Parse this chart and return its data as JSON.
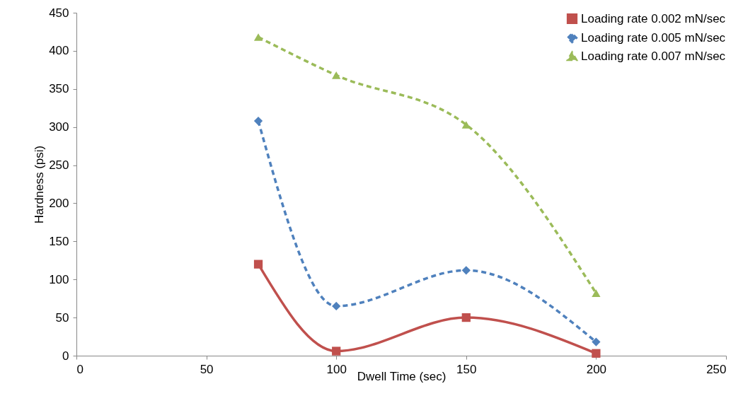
{
  "chart_data": {
    "type": "line",
    "xlabel": "Dwell Time (sec)",
    "ylabel": "Hardness (psi)",
    "x": [
      70,
      100,
      150,
      200
    ],
    "series": [
      {
        "name": "Loading rate 0.002 mN/sec",
        "color": "#c0504d",
        "marker": "square",
        "line_style": "solid",
        "values": [
          120,
          6,
          50,
          3
        ]
      },
      {
        "name": "Loading rate 0.005 mN/sec",
        "color": "#4f81bd",
        "marker": "diamond",
        "line_style": "dashed",
        "values": [
          308,
          65,
          112,
          18
        ]
      },
      {
        "name": "Loading rate 0.007 mN/sec",
        "color": "#9bbb59",
        "marker": "triangle",
        "line_style": "dashed",
        "values": [
          418,
          368,
          303,
          82
        ]
      }
    ],
    "xlim": [
      0,
      250
    ],
    "xticks": [
      0,
      50,
      100,
      150,
      200,
      250
    ],
    "ylim": [
      0,
      450
    ],
    "yticks": [
      0,
      50,
      100,
      150,
      200,
      250,
      300,
      350,
      400,
      450
    ],
    "grid": false,
    "legend": "top right"
  }
}
